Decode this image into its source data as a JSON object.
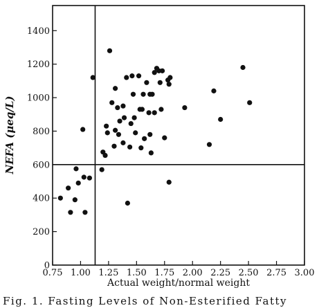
{
  "chart_data": {
    "type": "scatter",
    "title": "",
    "caption": "Fig. 1. Fasting Levels of Non-Esterified Fatty",
    "xlabel": "Actual weight/normal weight",
    "ylabel": "NEFA (μeq/L)",
    "xlim": [
      0.75,
      3.0
    ],
    "ylim": [
      0,
      1550
    ],
    "xticks": [
      0.75,
      1.0,
      1.25,
      1.5,
      1.75,
      2.0,
      2.25,
      2.5,
      2.75,
      3.0
    ],
    "xtick_labels": [
      "0.75",
      "1.00",
      "1.25",
      "1.50",
      "1.75",
      "2.00",
      "2.25",
      "2.50",
      "2.75",
      "3.00"
    ],
    "yticks": [
      0,
      200,
      400,
      600,
      800,
      1000,
      1200,
      1400
    ],
    "ytick_labels": [
      "0",
      "200",
      "400",
      "600",
      "800",
      "1000",
      "1200",
      "1400"
    ],
    "reference_lines": {
      "x": 1.13,
      "y": 600
    },
    "grid": false,
    "legend": "none",
    "points": [
      {
        "x": 0.82,
        "y": 400
      },
      {
        "x": 0.89,
        "y": 460
      },
      {
        "x": 0.91,
        "y": 315
      },
      {
        "x": 0.95,
        "y": 390
      },
      {
        "x": 0.96,
        "y": 575
      },
      {
        "x": 0.98,
        "y": 490
      },
      {
        "x": 1.02,
        "y": 810
      },
      {
        "x": 1.03,
        "y": 525
      },
      {
        "x": 1.04,
        "y": 315
      },
      {
        "x": 1.08,
        "y": 520
      },
      {
        "x": 1.11,
        "y": 1120
      },
      {
        "x": 1.19,
        "y": 570
      },
      {
        "x": 1.2,
        "y": 675
      },
      {
        "x": 1.22,
        "y": 655
      },
      {
        "x": 1.23,
        "y": 830
      },
      {
        "x": 1.24,
        "y": 790
      },
      {
        "x": 1.26,
        "y": 1280
      },
      {
        "x": 1.28,
        "y": 970
      },
      {
        "x": 1.3,
        "y": 710
      },
      {
        "x": 1.31,
        "y": 1055
      },
      {
        "x": 1.31,
        "y": 805
      },
      {
        "x": 1.33,
        "y": 940
      },
      {
        "x": 1.34,
        "y": 780
      },
      {
        "x": 1.35,
        "y": 860
      },
      {
        "x": 1.38,
        "y": 730
      },
      {
        "x": 1.38,
        "y": 950
      },
      {
        "x": 1.39,
        "y": 880
      },
      {
        "x": 1.41,
        "y": 1120
      },
      {
        "x": 1.42,
        "y": 370
      },
      {
        "x": 1.44,
        "y": 705
      },
      {
        "x": 1.45,
        "y": 845
      },
      {
        "x": 1.46,
        "y": 1130
      },
      {
        "x": 1.47,
        "y": 1020
      },
      {
        "x": 1.48,
        "y": 880
      },
      {
        "x": 1.49,
        "y": 790
      },
      {
        "x": 1.52,
        "y": 1130
      },
      {
        "x": 1.53,
        "y": 930
      },
      {
        "x": 1.54,
        "y": 700
      },
      {
        "x": 1.55,
        "y": 930
      },
      {
        "x": 1.56,
        "y": 1020
      },
      {
        "x": 1.57,
        "y": 755
      },
      {
        "x": 1.59,
        "y": 1090
      },
      {
        "x": 1.61,
        "y": 910
      },
      {
        "x": 1.62,
        "y": 1020
      },
      {
        "x": 1.62,
        "y": 780
      },
      {
        "x": 1.63,
        "y": 670
      },
      {
        "x": 1.64,
        "y": 1020
      },
      {
        "x": 1.66,
        "y": 1150
      },
      {
        "x": 1.66,
        "y": 910
      },
      {
        "x": 1.68,
        "y": 1175
      },
      {
        "x": 1.7,
        "y": 1160
      },
      {
        "x": 1.71,
        "y": 1090
      },
      {
        "x": 1.72,
        "y": 930
      },
      {
        "x": 1.73,
        "y": 1160
      },
      {
        "x": 1.75,
        "y": 760
      },
      {
        "x": 1.78,
        "y": 1105
      },
      {
        "x": 1.79,
        "y": 1080
      },
      {
        "x": 1.79,
        "y": 495
      },
      {
        "x": 1.8,
        "y": 1120
      },
      {
        "x": 1.93,
        "y": 940
      },
      {
        "x": 2.15,
        "y": 720
      },
      {
        "x": 2.19,
        "y": 1040
      },
      {
        "x": 2.25,
        "y": 870
      },
      {
        "x": 2.45,
        "y": 1180
      },
      {
        "x": 2.51,
        "y": 970
      }
    ]
  }
}
